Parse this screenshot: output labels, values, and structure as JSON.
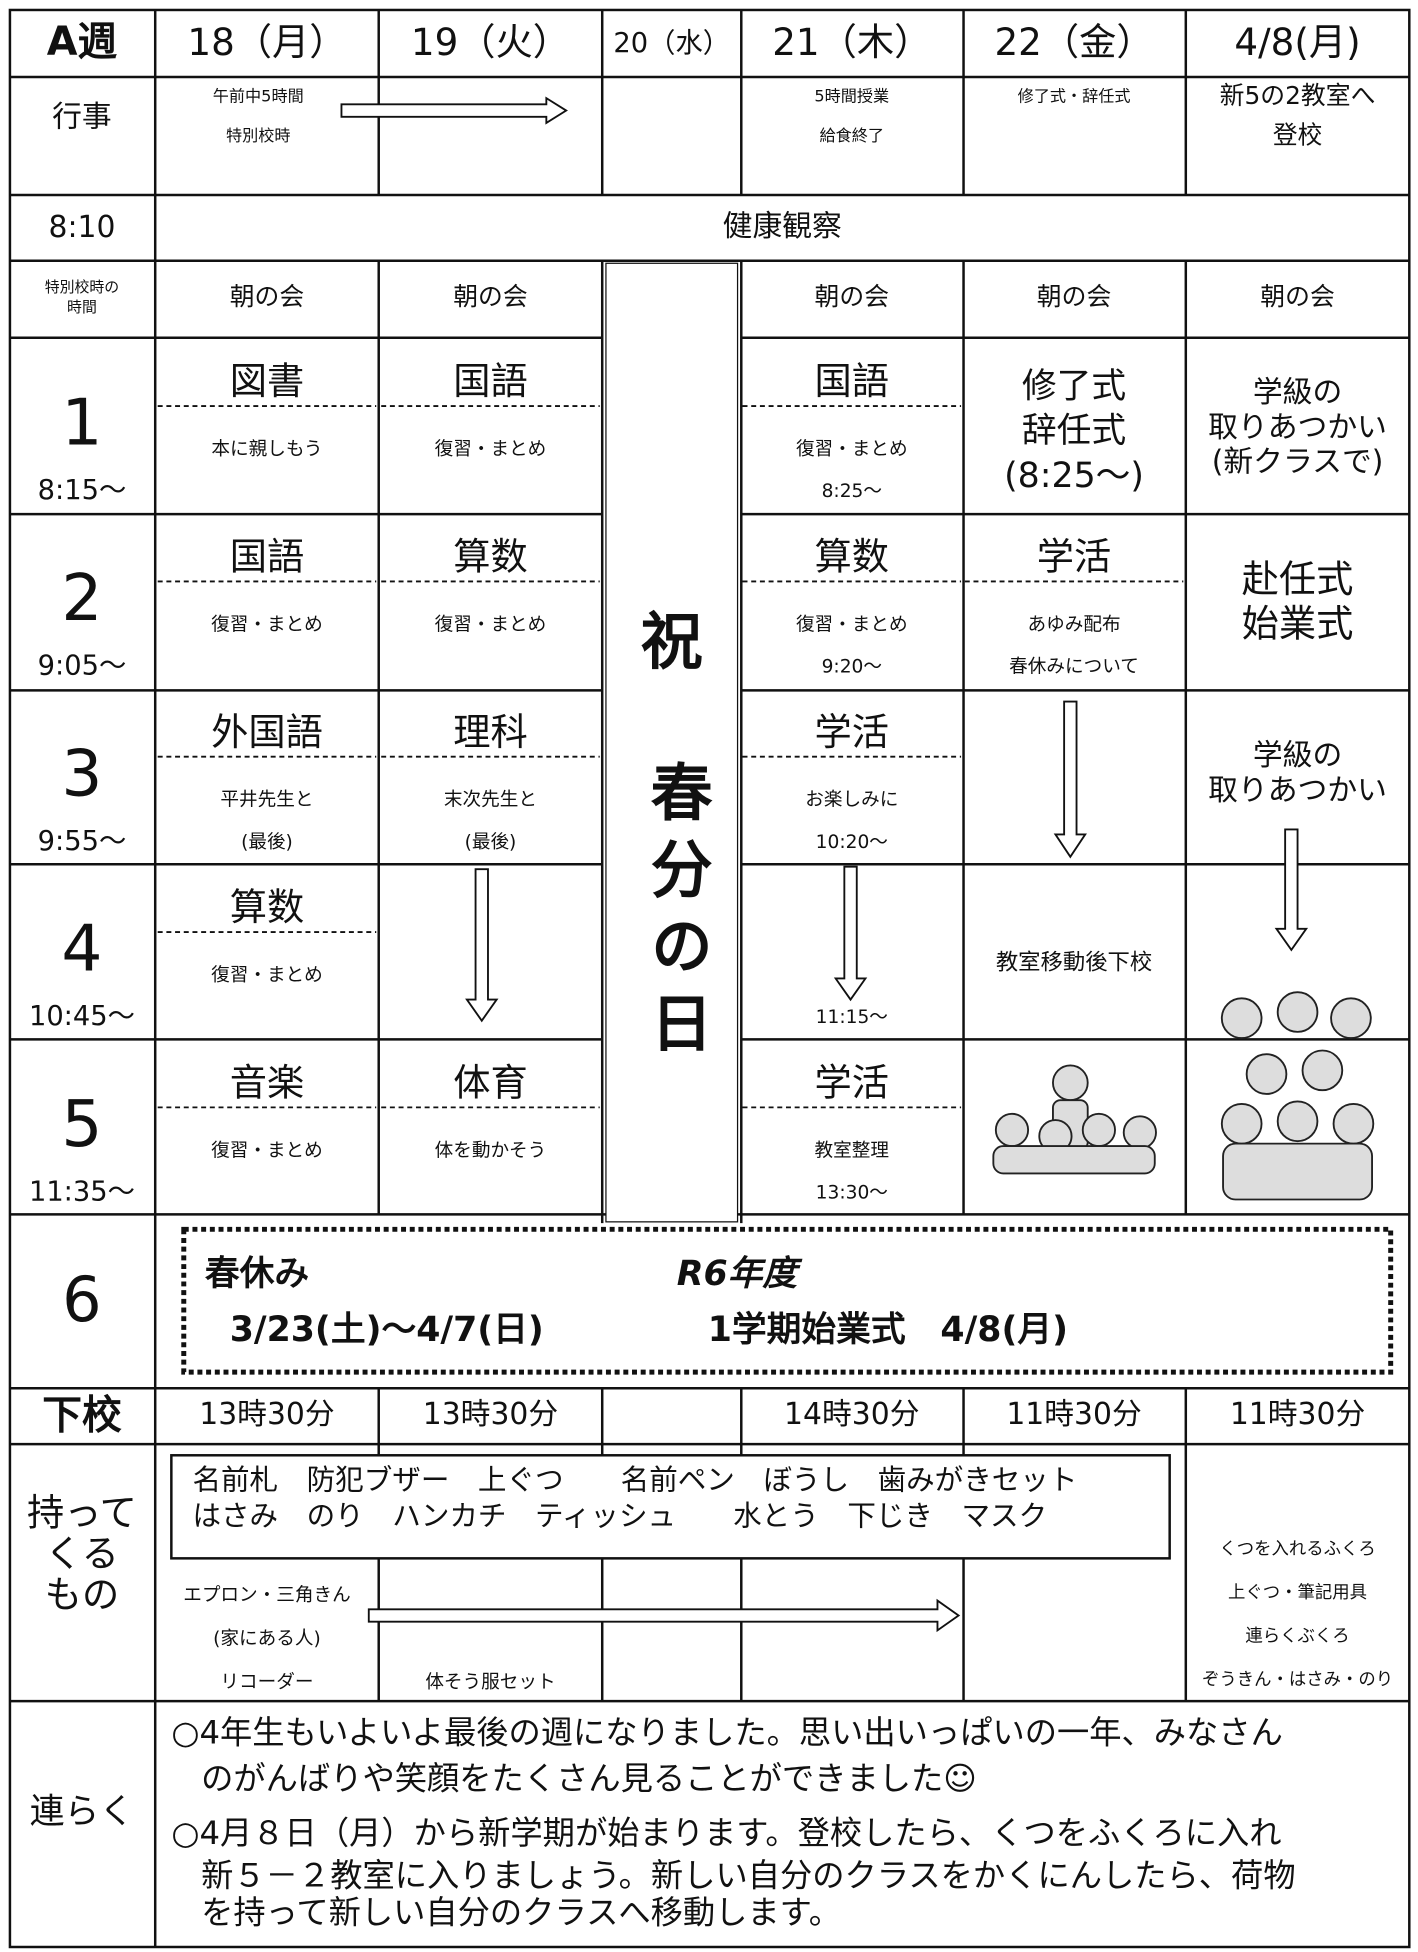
{
  "header": {
    "week": "A週",
    "days": [
      "18（月）",
      "19（火）",
      "20（水）",
      "21（木）",
      "22（金）",
      "4/8(月)"
    ]
  },
  "events": {
    "label": "行事",
    "d18": [
      "午前中5時間",
      "特別校時"
    ],
    "d21": [
      "5時間授業",
      "給食終了"
    ],
    "d22": [
      "修了式・辞任式"
    ],
    "d48": [
      "新5の2教室へ",
      "登校"
    ]
  },
  "health": {
    "time": "8:10",
    "text": "健康観察"
  },
  "morning": {
    "label": [
      "特別校時の",
      "時間"
    ],
    "text": "朝の会"
  },
  "periods": [
    {
      "number": "1",
      "time": "8:15〜",
      "cells": {
        "d18": {
          "subject": "図書",
          "notes": [
            "本に親しもう"
          ]
        },
        "d19": {
          "subject": "国語",
          "notes": [
            "復習・まとめ"
          ]
        },
        "d21": {
          "subject": "国語",
          "notes": [
            "復習・まとめ"
          ],
          "time": "8:25〜"
        },
        "d22": {
          "lines": [
            "修了式",
            "辞任式",
            "(8:25〜)"
          ]
        },
        "d48": {
          "lines": [
            "学級の",
            "取りあつかい",
            "(新クラスで)"
          ]
        }
      }
    },
    {
      "number": "2",
      "time": "9:05〜",
      "cells": {
        "d18": {
          "subject": "国語",
          "notes": [
            "復習・まとめ"
          ]
        },
        "d19": {
          "subject": "算数",
          "notes": [
            "復習・まとめ"
          ]
        },
        "d21": {
          "subject": "算数",
          "notes": [
            "復習・まとめ"
          ],
          "time": "9:20〜"
        },
        "d22": {
          "subject": "学活",
          "notes": [
            "あゆみ配布",
            "春休みについて"
          ]
        },
        "d48": {
          "lines": [
            "赴任式",
            "始業式"
          ]
        }
      }
    },
    {
      "number": "3",
      "time": "9:55〜",
      "cells": {
        "d18": {
          "subject": "外国語",
          "notes": [
            "平井先生と",
            "(最後)"
          ]
        },
        "d19": {
          "subject": "理科",
          "notes": [
            "末次先生と",
            "(最後)"
          ]
        },
        "d21": {
          "subject": "学活",
          "notes": [
            "お楽しみに"
          ],
          "time": "10:20〜"
        },
        "d48": {
          "lines": [
            "学級の",
            "取りあつかい"
          ]
        }
      }
    },
    {
      "number": "4",
      "time": "10:45〜",
      "cells": {
        "d18": {
          "subject": "算数",
          "notes": [
            "復習・まとめ"
          ]
        },
        "d21": {
          "time": "11:15〜"
        },
        "d22": {
          "lines": [
            "教室移動後下校"
          ]
        }
      }
    },
    {
      "number": "5",
      "time": "11:35〜",
      "cells": {
        "d18": {
          "subject": "音楽",
          "notes": [
            "復習・まとめ"
          ]
        },
        "d19": {
          "subject": "体育",
          "notes": [
            "体を動かそう"
          ]
        },
        "d21": {
          "subject": "学活",
          "notes": [
            "教室整理"
          ],
          "time": "13:30〜"
        }
      }
    }
  ],
  "holiday": {
    "mark": "祝",
    "name": "春分の日"
  },
  "sixth": {
    "number": "6",
    "break_title": "春休み",
    "break_dates": "3/23(土)〜4/7(日)",
    "year": "R6年度",
    "ceremony": "1学期始業式　4/8(月)"
  },
  "dismissal": {
    "label": "下校",
    "d18": "13時30分",
    "d19": "13時30分",
    "d21": "14時30分",
    "d22": "11時30分",
    "d48": "11時30分"
  },
  "belongings": {
    "label": [
      "持って",
      "くる",
      "もの"
    ],
    "common": [
      "名前札　防犯ブザー　上ぐつ　　名前ペン　ぼうし　歯みがきセット",
      "はさみ　のり　ハンカチ　ティッシュ　　水とう　下じき　マスク"
    ],
    "d18": [
      "エプロン・三角きん",
      "(家にある人)",
      "リコーダー"
    ],
    "d19": [
      "体そう服セット"
    ],
    "d48": [
      "くつを入れるふくろ",
      "上ぐつ・筆記用具",
      "連らくぶくろ",
      "ぞうきん・はさみ・のり"
    ]
  },
  "notes": {
    "label": "連らく",
    "lines": [
      "○4年生もいよいよ最後の週になりました。思い出いっぱいの一年、みなさん",
      "のがんばりや笑顔をたくさん見ることができました☺",
      "○4月８日（月）から新学期が始まります。登校したら、くつをふくろに入れ",
      "新５－２教室に入りましょう。新しい自分のクラスをかくにんしたら、荷物",
      "を持って新しい自分のクラスへ移動します。"
    ]
  }
}
